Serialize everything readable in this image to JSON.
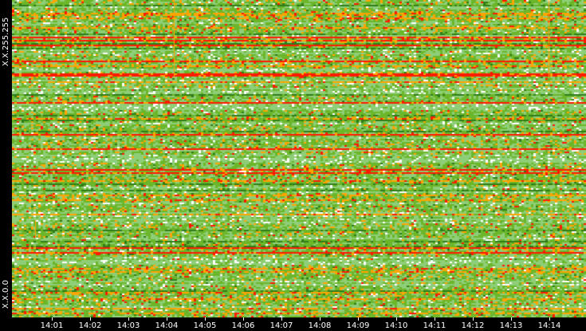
{
  "chart_data": {
    "type": "heatmap",
    "title": "",
    "x_tick_labels": [
      "14:01",
      "14:02",
      "14:03",
      "14:04",
      "14:05",
      "14:06",
      "14:07",
      "14:08",
      "14:09",
      "14:10",
      "14:11",
      "14:12",
      "14:13",
      "14:14"
    ],
    "y_tick_labels": {
      "top": "X.X.255.255",
      "bottom": "X.X.0.0"
    },
    "colors": {
      "low": "#8fce78",
      "mid": "#6cb62a",
      "high": "#ffa500",
      "max": "#ff1a00",
      "dark": "#2f7d1a",
      "empty": "#ffffff"
    },
    "grid": false,
    "legend": "none"
  }
}
